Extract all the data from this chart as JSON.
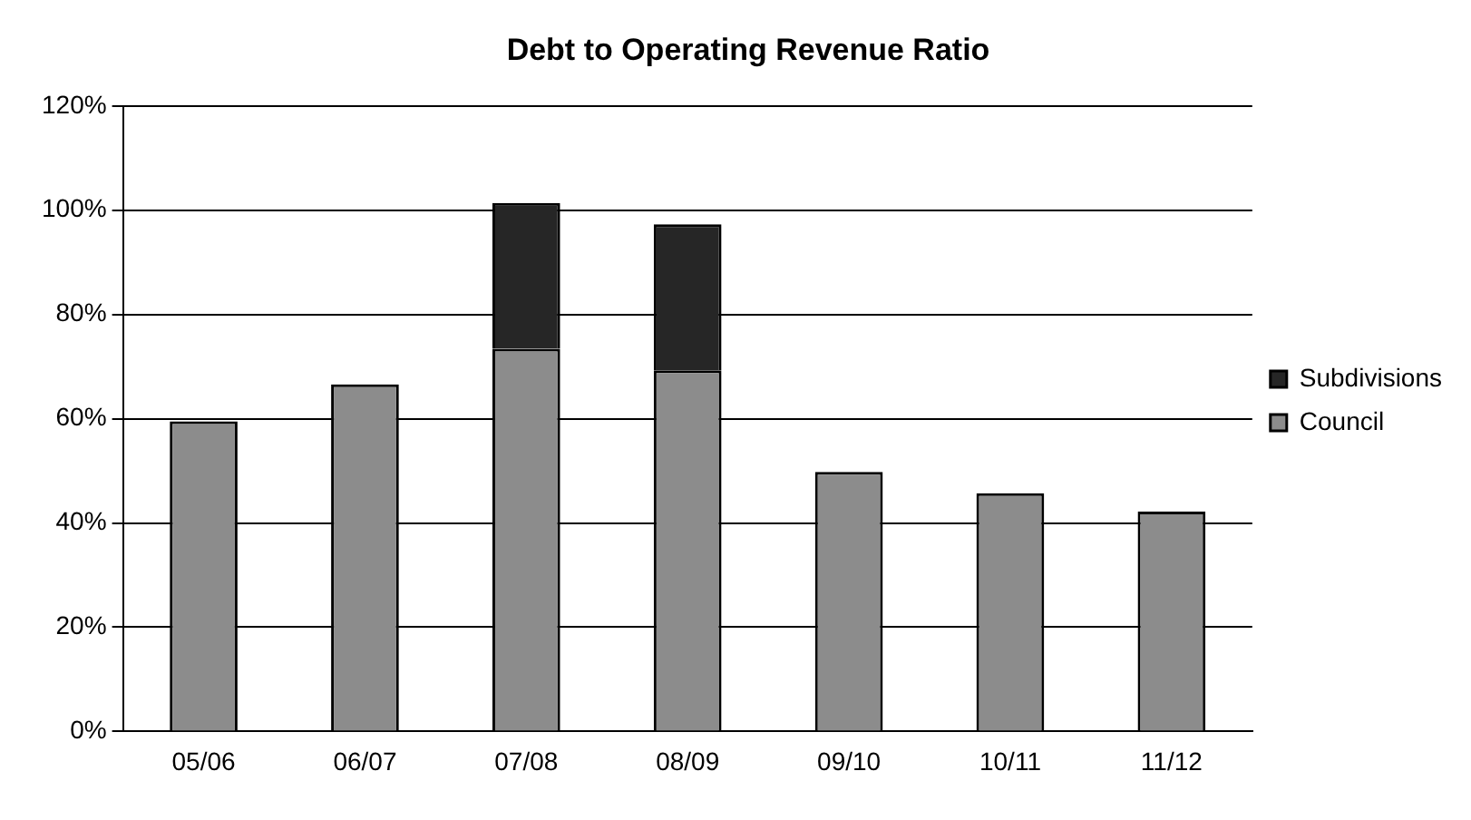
{
  "chart_data": {
    "type": "bar",
    "title": "Debt to Operating Revenue Ratio",
    "categories": [
      "05/06",
      "06/07",
      "07/08",
      "08/09",
      "09/10",
      "10/11",
      "11/12"
    ],
    "series": [
      {
        "name": "Council",
        "color": "#8c8c8c",
        "values": [
          59.5,
          66.6,
          73.4,
          69.3,
          49.8,
          45.7,
          42.2
        ]
      },
      {
        "name": "Subdivisions",
        "color": "#262626",
        "values": [
          0,
          0,
          28,
          28,
          0,
          0,
          0
        ]
      }
    ],
    "stacked": true,
    "ylim": [
      0,
      120
    ],
    "yticks": [
      {
        "value": 0,
        "label": "0%"
      },
      {
        "value": 20,
        "label": "20%"
      },
      {
        "value": 40,
        "label": "40%"
      },
      {
        "value": 60,
        "label": "60%"
      },
      {
        "value": 80,
        "label": "80%"
      },
      {
        "value": 100,
        "label": "100%"
      },
      {
        "value": 120,
        "label": "120%"
      }
    ],
    "grid": "y",
    "legend": "right"
  }
}
